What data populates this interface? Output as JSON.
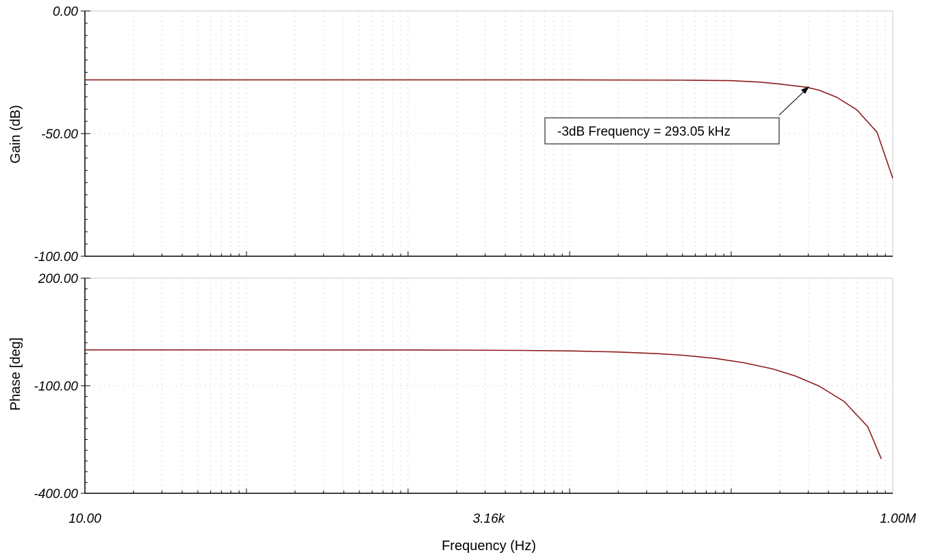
{
  "chart_data": [
    {
      "type": "line",
      "panel": "gain",
      "ylabel": "Gain (dB)",
      "ylim": [
        -100,
        0
      ],
      "y_tick_labels": [
        "0.00",
        "-50.00",
        "-100.00"
      ],
      "y_ticks": [
        0,
        -50,
        -100
      ],
      "xlim": [
        10,
        1000000
      ],
      "x_scale": "log",
      "grid": true,
      "series_color": "#8b1a1a",
      "series": [
        {
          "x": [
            10,
            100,
            1000,
            10000,
            50000,
            100000,
            150000,
            200000,
            293050,
            350000,
            450000,
            600000,
            800000,
            1000000
          ],
          "y": [
            -28.1,
            -28.1,
            -28.1,
            -28.1,
            -28.2,
            -28.4,
            -29,
            -29.8,
            -31.1,
            -32.3,
            -35.2,
            -40.3,
            -49.5,
            -68.2
          ]
        }
      ],
      "annotation": {
        "text": "-3dB Frequency = 293.05 kHz",
        "x": 293050,
        "y": -31.1
      }
    },
    {
      "type": "line",
      "panel": "phase",
      "ylabel": "Phase [deg]",
      "xlabel": "Frequency (Hz)",
      "ylim": [
        -400,
        200
      ],
      "y_tick_labels": [
        "200.00",
        "-100.00",
        "-400.00"
      ],
      "y_ticks": [
        200,
        -100,
        -400
      ],
      "xlim": [
        10,
        1000000
      ],
      "x_scale": "log",
      "x_tick_labels": [
        "10.00",
        "3.16k",
        "1.00M"
      ],
      "x_ticks": [
        10,
        3160,
        1000000
      ],
      "grid": true,
      "series_color": "#8b1a1a",
      "series": [
        {
          "x": [
            10,
            1000,
            2000,
            5000,
            10000,
            20000,
            35000,
            50000,
            80000,
            120000,
            180000,
            250000,
            350000,
            500000,
            700000,
            850000
          ],
          "y": [
            -0.1,
            -0.3,
            -0.6,
            -1.5,
            -3,
            -6,
            -10.5,
            -15,
            -24,
            -36,
            -53,
            -73,
            -101,
            -144,
            -214,
            -304
          ]
        }
      ]
    }
  ]
}
